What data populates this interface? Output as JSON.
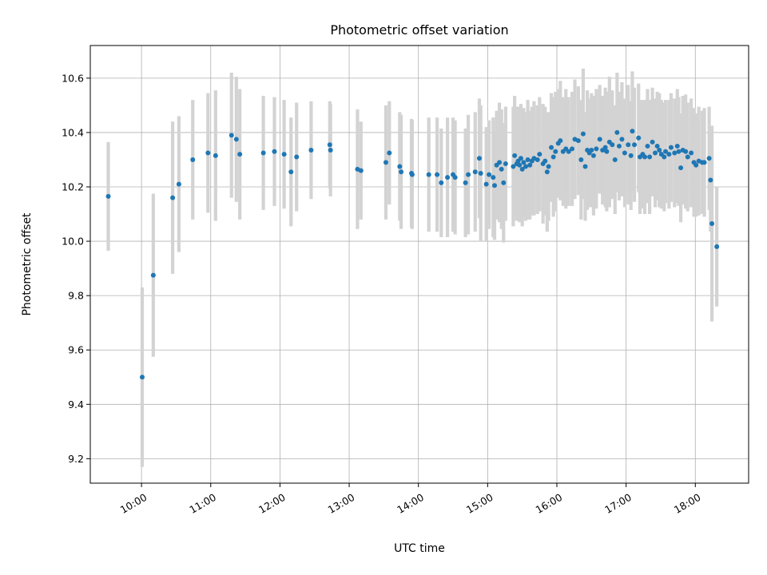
{
  "chart_data": {
    "type": "scatter",
    "title": "Photometric offset variation",
    "xlabel": "UTC time",
    "ylabel": "Photometric offset",
    "x_unit": "hours (UTC)",
    "xlim": [
      9.26,
      18.77
    ],
    "ylim": [
      9.11,
      10.72
    ],
    "xticks": [
      10,
      11,
      12,
      13,
      14,
      15,
      16,
      17,
      18
    ],
    "xtick_labels": [
      "10:00",
      "11:00",
      "12:00",
      "13:00",
      "14:00",
      "15:00",
      "16:00",
      "17:00",
      "18:00"
    ],
    "yticks": [
      9.2,
      9.4,
      9.6,
      9.8,
      10.0,
      10.2,
      10.4,
      10.6
    ],
    "ytick_labels": [
      "9.2",
      "9.4",
      "9.6",
      "9.8",
      "10.0",
      "10.2",
      "10.4",
      "10.6"
    ],
    "grid": true,
    "marker_color": "#1f77b4",
    "errorbar_color": "#d3d3d3",
    "points": [
      [
        9.52,
        10.165,
        0.2
      ],
      [
        10.01,
        9.5,
        0.33
      ],
      [
        10.17,
        9.875,
        0.3
      ],
      [
        10.45,
        10.16,
        0.28
      ],
      [
        10.54,
        10.21,
        0.25
      ],
      [
        10.74,
        10.3,
        0.22
      ],
      [
        10.96,
        10.325,
        0.22
      ],
      [
        11.07,
        10.315,
        0.24
      ],
      [
        11.3,
        10.39,
        0.23
      ],
      [
        11.37,
        10.375,
        0.23
      ],
      [
        11.42,
        10.32,
        0.24
      ],
      [
        11.76,
        10.325,
        0.21
      ],
      [
        11.92,
        10.33,
        0.2
      ],
      [
        12.06,
        10.32,
        0.2
      ],
      [
        12.16,
        10.255,
        0.2
      ],
      [
        12.24,
        10.31,
        0.2
      ],
      [
        12.45,
        10.335,
        0.18
      ],
      [
        12.72,
        10.355,
        0.16
      ],
      [
        12.73,
        10.335,
        0.17
      ],
      [
        13.12,
        10.265,
        0.22
      ],
      [
        13.17,
        10.26,
        0.18
      ],
      [
        13.53,
        10.29,
        0.21
      ],
      [
        13.58,
        10.325,
        0.19
      ],
      [
        13.73,
        10.275,
        0.2
      ],
      [
        13.75,
        10.255,
        0.21
      ],
      [
        13.9,
        10.25,
        0.2
      ],
      [
        13.91,
        10.245,
        0.2
      ],
      [
        14.15,
        10.245,
        0.21
      ],
      [
        14.27,
        10.245,
        0.21
      ],
      [
        14.33,
        10.215,
        0.2
      ],
      [
        14.42,
        10.235,
        0.22
      ],
      [
        14.5,
        10.245,
        0.21
      ],
      [
        14.53,
        10.235,
        0.21
      ],
      [
        14.68,
        10.215,
        0.2
      ],
      [
        14.72,
        10.245,
        0.22
      ],
      [
        14.82,
        10.255,
        0.22
      ],
      [
        14.88,
        10.305,
        0.22
      ],
      [
        14.9,
        10.25,
        0.25
      ],
      [
        14.98,
        10.21,
        0.21
      ],
      [
        15.02,
        10.245,
        0.2
      ],
      [
        15.08,
        10.235,
        0.22
      ],
      [
        15.1,
        10.205,
        0.2
      ],
      [
        15.13,
        10.28,
        0.2
      ],
      [
        15.17,
        10.29,
        0.22
      ],
      [
        15.2,
        10.265,
        0.22
      ],
      [
        15.23,
        10.215,
        0.22
      ],
      [
        15.26,
        10.285,
        0.21
      ],
      [
        15.37,
        10.275,
        0.22
      ],
      [
        15.39,
        10.315,
        0.22
      ],
      [
        15.42,
        10.285,
        0.21
      ],
      [
        15.44,
        10.295,
        0.2
      ],
      [
        15.46,
        10.28,
        0.21
      ],
      [
        15.48,
        10.305,
        0.2
      ],
      [
        15.5,
        10.265,
        0.21
      ],
      [
        15.52,
        10.29,
        0.2
      ],
      [
        15.55,
        10.275,
        0.2
      ],
      [
        15.58,
        10.3,
        0.22
      ],
      [
        15.61,
        10.28,
        0.2
      ],
      [
        15.64,
        10.295,
        0.2
      ],
      [
        15.67,
        10.305,
        0.21
      ],
      [
        15.72,
        10.3,
        0.2
      ],
      [
        15.75,
        10.32,
        0.21
      ],
      [
        15.8,
        10.285,
        0.22
      ],
      [
        15.83,
        10.295,
        0.2
      ],
      [
        15.86,
        10.255,
        0.22
      ],
      [
        15.88,
        10.275,
        0.2
      ],
      [
        15.92,
        10.345,
        0.2
      ],
      [
        15.95,
        10.31,
        0.22
      ],
      [
        15.98,
        10.33,
        0.22
      ],
      [
        16.02,
        10.36,
        0.2
      ],
      [
        16.05,
        10.37,
        0.22
      ],
      [
        16.09,
        10.33,
        0.2
      ],
      [
        16.13,
        10.34,
        0.22
      ],
      [
        16.17,
        10.33,
        0.2
      ],
      [
        16.22,
        10.34,
        0.21
      ],
      [
        16.26,
        10.375,
        0.22
      ],
      [
        16.31,
        10.37,
        0.2
      ],
      [
        16.35,
        10.3,
        0.22
      ],
      [
        16.38,
        10.395,
        0.24
      ],
      [
        16.41,
        10.275,
        0.2
      ],
      [
        16.44,
        10.335,
        0.22
      ],
      [
        16.47,
        10.325,
        0.2
      ],
      [
        16.5,
        10.335,
        0.21
      ],
      [
        16.53,
        10.315,
        0.22
      ],
      [
        16.57,
        10.34,
        0.22
      ],
      [
        16.62,
        10.375,
        0.2
      ],
      [
        16.66,
        10.335,
        0.2
      ],
      [
        16.7,
        10.345,
        0.22
      ],
      [
        16.72,
        10.33,
        0.22
      ],
      [
        16.76,
        10.365,
        0.24
      ],
      [
        16.8,
        10.355,
        0.2
      ],
      [
        16.84,
        10.3,
        0.2
      ],
      [
        16.87,
        10.4,
        0.22
      ],
      [
        16.9,
        10.35,
        0.2
      ],
      [
        16.94,
        10.375,
        0.21
      ],
      [
        16.98,
        10.325,
        0.2
      ],
      [
        17.03,
        10.355,
        0.22
      ],
      [
        17.07,
        10.315,
        0.2
      ],
      [
        17.09,
        10.405,
        0.22
      ],
      [
        17.12,
        10.355,
        0.21
      ],
      [
        17.18,
        10.38,
        0.2
      ],
      [
        17.2,
        10.31,
        0.21
      ],
      [
        17.24,
        10.32,
        0.2
      ],
      [
        17.27,
        10.31,
        0.21
      ],
      [
        17.31,
        10.35,
        0.21
      ],
      [
        17.34,
        10.31,
        0.21
      ],
      [
        17.38,
        10.365,
        0.2
      ],
      [
        17.42,
        10.325,
        0.2
      ],
      [
        17.45,
        10.35,
        0.2
      ],
      [
        17.48,
        10.335,
        0.21
      ],
      [
        17.51,
        10.32,
        0.2
      ],
      [
        17.55,
        10.31,
        0.2
      ],
      [
        17.57,
        10.33,
        0.19
      ],
      [
        17.62,
        10.32,
        0.2
      ],
      [
        17.65,
        10.345,
        0.2
      ],
      [
        17.7,
        10.325,
        0.2
      ],
      [
        17.74,
        10.35,
        0.21
      ],
      [
        17.76,
        10.33,
        0.2
      ],
      [
        17.79,
        10.27,
        0.2
      ],
      [
        17.82,
        10.335,
        0.2
      ],
      [
        17.86,
        10.33,
        0.21
      ],
      [
        17.89,
        10.31,
        0.2
      ],
      [
        17.94,
        10.325,
        0.2
      ],
      [
        17.98,
        10.29,
        0.2
      ],
      [
        18.01,
        10.28,
        0.19
      ],
      [
        18.05,
        10.295,
        0.2
      ],
      [
        18.1,
        10.29,
        0.19
      ],
      [
        18.13,
        10.29,
        0.2
      ],
      [
        18.2,
        10.305,
        0.19
      ],
      [
        18.22,
        10.225,
        0.19
      ],
      [
        18.24,
        10.065,
        0.36
      ],
      [
        18.31,
        9.98,
        0.22
      ]
    ]
  }
}
